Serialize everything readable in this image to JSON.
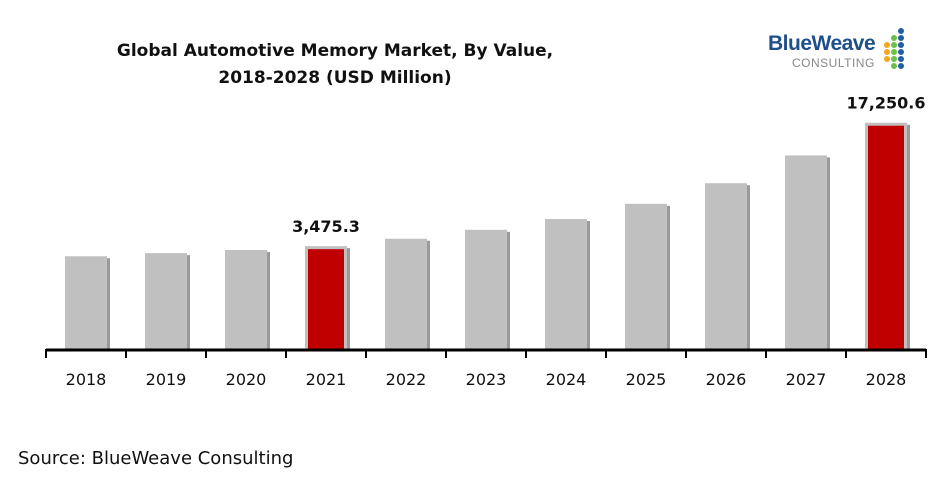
{
  "chart_data": {
    "type": "bar",
    "title_line1": "Global Automotive Memory Market, By Value,",
    "title_line2": "2018-2028 (USD Million)",
    "categories": [
      "2018",
      "2019",
      "2020",
      "2021",
      "2022",
      "2023",
      "2024",
      "2025",
      "2026",
      "2027",
      "2028"
    ],
    "values": [
      2350,
      2700,
      3050,
      3475.3,
      4300,
      5300,
      6500,
      8200,
      10500,
      13600,
      17250.6
    ],
    "highlighted": [
      "2021",
      "2028"
    ],
    "data_labels": {
      "2021": "3,475.3",
      "2028": "17,250.6"
    },
    "xlabel": "",
    "ylabel": "",
    "ylim": [
      -8000,
      18000
    ],
    "grid": false,
    "colors": {
      "bar": "#c0c0c0",
      "highlight": "#c00000",
      "axis": "#000000"
    }
  },
  "source": "Source: BlueWeave Consulting",
  "logo": {
    "main": "BlueWeave",
    "sub": "CONSULTING"
  }
}
